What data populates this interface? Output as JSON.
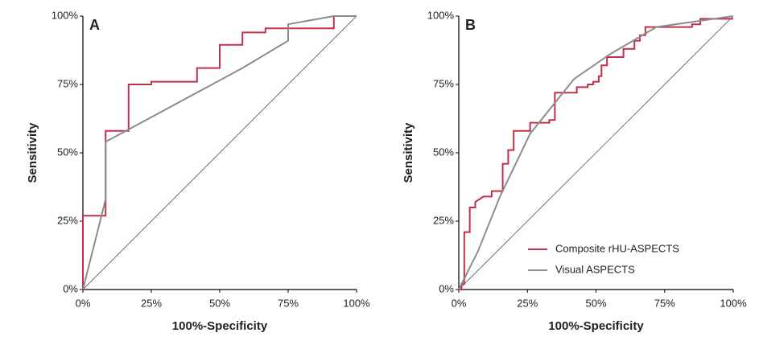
{
  "chart_data": [
    {
      "type": "line",
      "label": "A",
      "xlabel": "100%-Specificity",
      "ylabel": "Sensitivity",
      "xlim": [
        0,
        100
      ],
      "ylim": [
        0,
        100
      ],
      "xticks": [
        {
          "value": 0,
          "label": "0%"
        },
        {
          "value": 25,
          "label": "25%"
        },
        {
          "value": 50,
          "label": "50%"
        },
        {
          "value": 75,
          "label": "75%"
        },
        {
          "value": 100,
          "label": "100%"
        }
      ],
      "yticks": [
        {
          "value": 0,
          "label": "0%"
        },
        {
          "value": 25,
          "label": "25%"
        },
        {
          "value": 50,
          "label": "50%"
        },
        {
          "value": 75,
          "label": "75%"
        },
        {
          "value": 100,
          "label": "100%"
        }
      ],
      "series": [
        {
          "color": "#c0304a",
          "x": [
            0,
            0,
            8.3,
            8.3,
            16.7,
            16.7,
            25,
            25,
            41.7,
            41.7,
            50,
            50,
            58.3,
            58.3,
            66.7,
            66.7,
            91.7,
            91.7,
            100
          ],
          "values": [
            0,
            27,
            27,
            58,
            58,
            75,
            75,
            76,
            76,
            81,
            81,
            89.5,
            89.5,
            94,
            94,
            95.5,
            95.5,
            100,
            100
          ]
        },
        {
          "color": "#8c8c8c",
          "x": [
            0,
            8.3,
            8.3,
            58.3,
            75,
            75,
            91.7,
            100
          ],
          "values": [
            0,
            33,
            54,
            81,
            91,
            97,
            100,
            100
          ]
        }
      ]
    },
    {
      "type": "line",
      "label": "B",
      "xlabel": "100%-Specificity",
      "ylabel": "Sensitivity",
      "xlim": [
        0,
        100
      ],
      "ylim": [
        0,
        100
      ],
      "xticks": [
        {
          "value": 0,
          "label": "0%"
        },
        {
          "value": 25,
          "label": "25%"
        },
        {
          "value": 50,
          "label": "50%"
        },
        {
          "value": 75,
          "label": "75%"
        },
        {
          "value": 100,
          "label": "100%"
        }
      ],
      "yticks": [
        {
          "value": 0,
          "label": "0%"
        },
        {
          "value": 25,
          "label": "25%"
        },
        {
          "value": 50,
          "label": "50%"
        },
        {
          "value": 75,
          "label": "75%"
        },
        {
          "value": 100,
          "label": "100%"
        }
      ],
      "series": [
        {
          "name": "Composite rHU-ASPECTS",
          "color": "#c0304a",
          "x": [
            0,
            1,
            1,
            2,
            2,
            4,
            4,
            6,
            6,
            9,
            9,
            12,
            12,
            16,
            16,
            18,
            18,
            20,
            20,
            26,
            26,
            33,
            33,
            35,
            35,
            43,
            43,
            47,
            47,
            49,
            49,
            51,
            51,
            52,
            52,
            54,
            54,
            60,
            60,
            64,
            64,
            66,
            66,
            68,
            68,
            85,
            85,
            88,
            88,
            100
          ],
          "values": [
            0,
            0,
            2,
            2,
            21,
            21,
            30,
            30,
            32,
            34,
            34,
            34,
            36,
            36,
            46,
            46,
            51,
            51,
            58,
            58,
            61,
            61,
            62,
            62,
            72,
            72,
            74,
            74,
            75,
            75,
            76,
            76,
            78,
            78,
            82,
            82,
            85,
            85,
            88,
            88,
            91,
            91,
            93,
            93,
            96,
            96,
            97,
            97,
            99,
            99
          ]
        },
        {
          "name": "Visual ASPECTS",
          "color": "#8c8c8c",
          "x": [
            0,
            7,
            15,
            26,
            42,
            55,
            72,
            100
          ],
          "values": [
            0,
            14,
            34,
            57,
            77,
            86,
            96,
            100
          ]
        }
      ]
    }
  ]
}
